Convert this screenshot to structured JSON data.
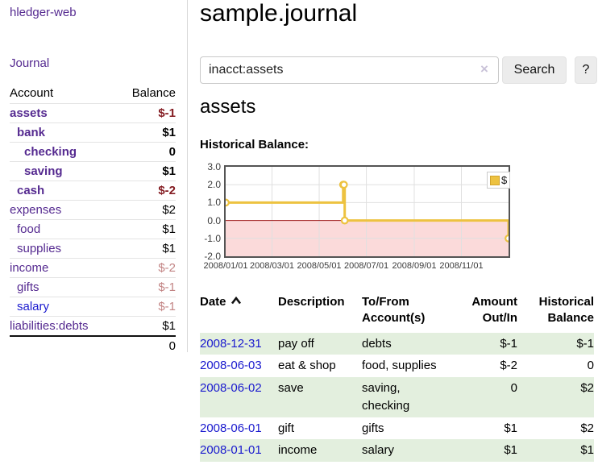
{
  "app_title": "hledger-web",
  "colors": {
    "purple": "#552a90",
    "blue": "#1a1ace",
    "dark-red": "#841c22",
    "soft-red": "#c28484",
    "row-green": "#e3efde",
    "chart-yellow": "#edc240",
    "negative-region": "#fbdada",
    "zero-line": "#9e1a1a",
    "separator": "#d8d8d8"
  },
  "sidebar": {
    "journal_link": "Journal",
    "accounts": {
      "header": {
        "account": "Account",
        "balance": "Balance"
      },
      "rows": [
        {
          "name": "assets",
          "balance": "$-1",
          "level": 0,
          "bold": true
        },
        {
          "name": "bank",
          "balance": "$1",
          "level": 1,
          "bold": true
        },
        {
          "name": "checking",
          "balance": "0",
          "level": 2,
          "bold": true
        },
        {
          "name": "saving",
          "balance": "$1",
          "level": 2,
          "bold": true
        },
        {
          "name": "cash",
          "balance": "$-2",
          "level": 1,
          "bold": true
        },
        {
          "name": "expenses",
          "balance": "$2",
          "level": 0,
          "bold": false
        },
        {
          "name": "food",
          "balance": "$1",
          "level": 1,
          "bold": false
        },
        {
          "name": "supplies",
          "balance": "$1",
          "level": 1,
          "bold": false
        },
        {
          "name": "income",
          "balance": "$-2",
          "level": 0,
          "bold": false
        },
        {
          "name": "gifts",
          "balance": "$-1",
          "level": 1,
          "bold": false
        },
        {
          "name": "salary",
          "balance": "$-1",
          "level": 1,
          "bold": false,
          "unvisited": true
        },
        {
          "name": "liabilities:debts",
          "balance": "$1",
          "level": 0,
          "bold": false
        }
      ],
      "total": "0"
    }
  },
  "main": {
    "title": "sample.journal",
    "search": {
      "value": "inacct:assets",
      "clear_icon": "×",
      "button": "Search",
      "help": "?"
    },
    "account_heading": "assets",
    "chart_title": "Historical Balance:"
  },
  "chart_data": {
    "type": "line",
    "style": "steps",
    "title": "Historical Balance:",
    "series": [
      {
        "name": "$",
        "color": "#edc240"
      }
    ],
    "points": [
      {
        "date": "2008-01-01",
        "pos": 0.0,
        "value": 1
      },
      {
        "date": "2008-06-01",
        "pos": 0.4153,
        "value": 2
      },
      {
        "date": "2008-06-02",
        "pos": 0.418,
        "value": 2
      },
      {
        "date": "2008-06-03",
        "pos": 0.4208,
        "value": 0
      },
      {
        "date": "2008-12-31",
        "pos": 1.0,
        "value": -1
      }
    ],
    "ylim": [
      -2,
      3
    ],
    "y_ticks": [
      3,
      2,
      1,
      0,
      -1,
      -2
    ],
    "x_ticks": [
      {
        "label": "2008/01/01",
        "pos": 0.0
      },
      {
        "label": "2008/03/01",
        "pos": 0.1639
      },
      {
        "label": "2008/05/01",
        "pos": 0.3306
      },
      {
        "label": "2008/07/01",
        "pos": 0.4973
      },
      {
        "label": "2008/09/01",
        "pos": 0.6667
      },
      {
        "label": "2008/11/01",
        "pos": 0.8333
      }
    ],
    "grid": true,
    "legend": {
      "label": "$",
      "position": "top-right"
    }
  },
  "register": {
    "headers": [
      "Date",
      "Description",
      "To/From Account(s)",
      "Amount Out/In",
      "Historical Balance"
    ],
    "rows": [
      {
        "date": "2008-12-31",
        "description": "pay off",
        "accounts": "debts",
        "amount": "$-1",
        "balance": "$-1"
      },
      {
        "date": "2008-06-03",
        "description": "eat & shop",
        "accounts": "food, supplies",
        "amount": "$-2",
        "balance": "0"
      },
      {
        "date": "2008-06-02",
        "description": "save",
        "accounts": "saving, checking",
        "amount": "0",
        "balance": "$2"
      },
      {
        "date": "2008-06-01",
        "description": "gift",
        "accounts": "gifts",
        "amount": "$1",
        "balance": "$2"
      },
      {
        "date": "2008-01-01",
        "description": "income",
        "accounts": "salary",
        "amount": "$1",
        "balance": "$1"
      }
    ]
  }
}
